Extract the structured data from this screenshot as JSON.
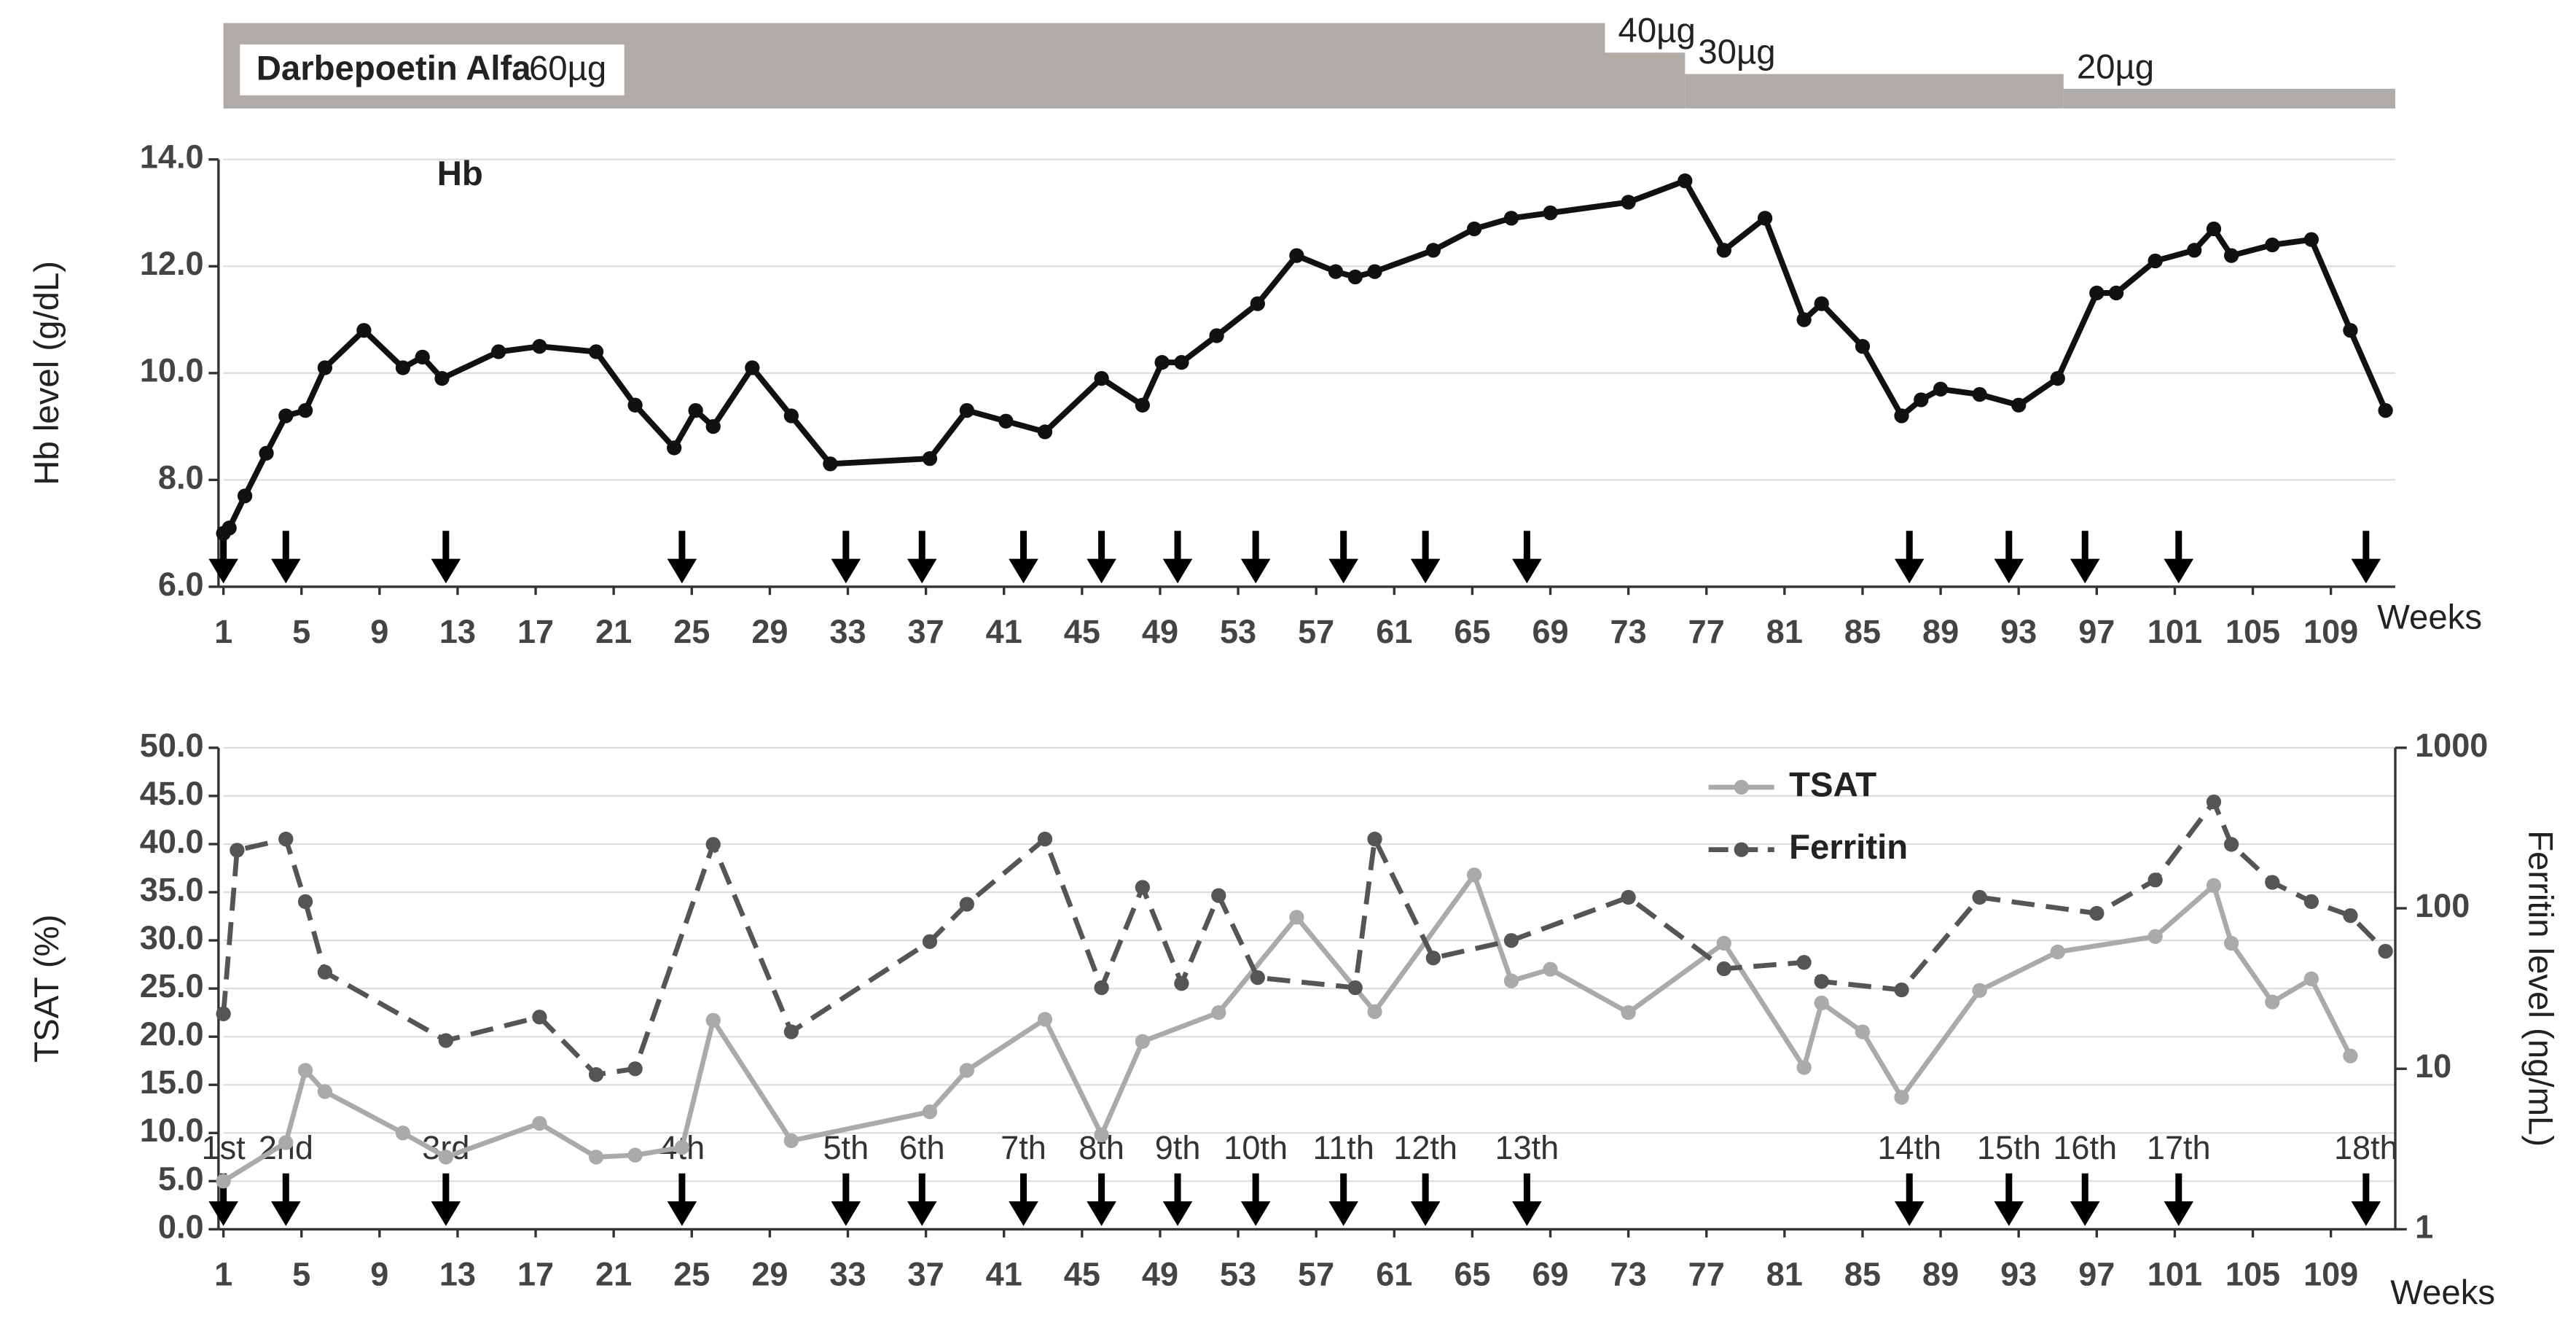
{
  "dosing": {
    "drug": "Darbepoetin Alfa",
    "segments": [
      {
        "dose": "60µg",
        "start": 1,
        "end": 71.8
      },
      {
        "dose": "40µg",
        "start": 71.8,
        "end": 75.9
      },
      {
        "dose": "30µg",
        "start": 75.9,
        "end": 95.3
      },
      {
        "dose": "20µg",
        "start": 95.3,
        "end": 112.3
      }
    ]
  },
  "iron_doses": {
    "weeks": [
      1,
      4.2,
      12.4,
      24.5,
      32.9,
      36.8,
      42,
      46,
      49.9,
      53.9,
      58.4,
      62.6,
      67.8,
      87.4,
      92.5,
      96.4,
      101.2,
      110.8
    ],
    "labels": [
      "1st",
      "2nd",
      "3rd",
      "4th",
      "5th",
      "6th",
      "7th",
      "8th",
      "9th",
      "10th",
      "11th",
      "12th",
      "13th",
      "14th",
      "15th",
      "16th",
      "17th",
      "18th"
    ]
  },
  "chart_data": [
    {
      "type": "line",
      "title": "Hb",
      "ylabel": "Hb level (g/dL)",
      "xlabel": "Weeks",
      "xlim": [
        1,
        112.3
      ],
      "xticks": [
        1,
        5,
        9,
        13,
        17,
        21,
        25,
        29,
        33,
        37,
        41,
        45,
        49,
        53,
        57,
        61,
        65,
        69,
        73,
        77,
        81,
        85,
        89,
        93,
        97,
        101,
        105,
        109
      ],
      "ylim": [
        6,
        14
      ],
      "yticks": [
        {
          "value": 6,
          "label": "6.0"
        },
        {
          "value": 8,
          "label": "8.0"
        },
        {
          "value": 10,
          "label": "10.0"
        },
        {
          "value": 12,
          "label": "12.0"
        },
        {
          "value": 14,
          "label": "14.0"
        }
      ],
      "grid": true,
      "series": [
        {
          "name": "Hb",
          "color": "#111111",
          "x": [
            1,
            1.3,
            2.1,
            3.2,
            4.2,
            5.2,
            6.2,
            8.2,
            10.2,
            11.2,
            12.2,
            15.1,
            17.2,
            20.1,
            22.1,
            24.1,
            25.2,
            26.1,
            28.1,
            30.1,
            32.1,
            37.2,
            39.1,
            41.1,
            43.1,
            46,
            48.1,
            49.1,
            50.1,
            51.9,
            54,
            56,
            58,
            59,
            60,
            63,
            65.1,
            67,
            69,
            73,
            75.9,
            77.9,
            80,
            82,
            82.9,
            85,
            87,
            88,
            89,
            91,
            93,
            95,
            97,
            98,
            100,
            102,
            103,
            103.9,
            106,
            108,
            110,
            111.8
          ],
          "values": [
            7.0,
            7.1,
            7.7,
            8.5,
            9.2,
            9.3,
            10.1,
            10.8,
            10.1,
            10.3,
            9.9,
            10.4,
            10.5,
            10.4,
            9.4,
            8.6,
            9.3,
            9.0,
            10.1,
            9.2,
            8.3,
            8.4,
            9.3,
            9.1,
            8.9,
            9.9,
            9.4,
            10.2,
            10.2,
            10.7,
            11.3,
            12.2,
            11.9,
            11.8,
            11.9,
            12.3,
            12.7,
            12.9,
            13.0,
            13.2,
            13.6,
            12.3,
            12.9,
            11.0,
            11.3,
            10.5,
            9.2,
            9.5,
            9.7,
            9.6,
            9.4,
            9.9,
            11.5,
            11.5,
            12.1,
            12.3,
            12.7,
            12.2,
            12.4,
            12.5,
            10.8,
            9.3
          ]
        }
      ]
    },
    {
      "type": "line",
      "ylabel": "TSAT  (%)",
      "y2label": "Ferritin level (ng/mL)",
      "xlabel": "Weeks",
      "xlim": [
        1,
        112.3
      ],
      "xticks": [
        1,
        5,
        9,
        13,
        17,
        21,
        25,
        29,
        33,
        37,
        41,
        45,
        49,
        53,
        57,
        61,
        65,
        69,
        73,
        77,
        81,
        85,
        89,
        93,
        97,
        101,
        105,
        109
      ],
      "ylim": [
        0,
        50
      ],
      "yticks": [
        {
          "value": 0,
          "label": "0.0"
        },
        {
          "value": 5,
          "label": "5.0"
        },
        {
          "value": 10,
          "label": "10.0"
        },
        {
          "value": 15,
          "label": "15.0"
        },
        {
          "value": 20,
          "label": "20.0"
        },
        {
          "value": 25,
          "label": "25.0"
        },
        {
          "value": 30,
          "label": "30.0"
        },
        {
          "value": 35,
          "label": "35.0"
        },
        {
          "value": 40,
          "label": "40.0"
        },
        {
          "value": 45,
          "label": "45.0"
        },
        {
          "value": 50,
          "label": "50.0"
        }
      ],
      "y2lim": [
        1,
        1000
      ],
      "y2ticks": [
        1,
        10,
        100,
        1000
      ],
      "y2log": true,
      "grid": true,
      "legend": "top-right",
      "series": [
        {
          "name": "TSAT",
          "color": "#aaaaaa",
          "dash": false,
          "x": [
            1,
            4.2,
            5.2,
            6.2,
            10.2,
            12.4,
            17.2,
            20.1,
            22.1,
            24.5,
            26.1,
            30.1,
            37.2,
            39.1,
            43.1,
            46,
            48.1,
            52,
            56,
            60,
            65.1,
            67,
            69,
            73,
            77.9,
            82,
            82.9,
            85,
            87,
            91,
            95,
            100,
            103,
            103.9,
            106,
            108,
            110
          ],
          "values": [
            5.0,
            9.0,
            16.5,
            14.3,
            10.0,
            7.5,
            11.0,
            7.5,
            7.7,
            8.5,
            21.7,
            9.2,
            12.2,
            16.5,
            21.8,
            9.8,
            19.5,
            22.5,
            32.4,
            22.6,
            36.8,
            25.8,
            27.0,
            22.5,
            29.7,
            16.8,
            23.5,
            20.5,
            13.7,
            24.8,
            28.8,
            30.4,
            35.7,
            29.7,
            23.6,
            26.0,
            18.0
          ]
        },
        {
          "name": "Ferritin",
          "color": "#555555",
          "dash": true,
          "axis": "y2",
          "x": [
            1,
            1.7,
            4.2,
            5.2,
            6.2,
            12.4,
            17.2,
            20.1,
            22.1,
            26.1,
            30.1,
            37.2,
            39.1,
            43.1,
            46,
            48.1,
            50.1,
            52,
            54,
            59,
            60,
            63,
            67,
            73,
            77.9,
            82,
            82.9,
            87,
            91,
            97,
            100,
            103,
            103.9,
            106,
            108,
            110,
            111.8
          ],
          "values": [
            22,
            230,
            270,
            110,
            40,
            15,
            21,
            9.2,
            10,
            250,
            17,
            62,
            106,
            270,
            32,
            135,
            34,
            120,
            37,
            32,
            270,
            49,
            63,
            117,
            42,
            46,
            35,
            31,
            117,
            93,
            150,
            460,
            250,
            145,
            110,
            90,
            54
          ]
        }
      ]
    }
  ]
}
